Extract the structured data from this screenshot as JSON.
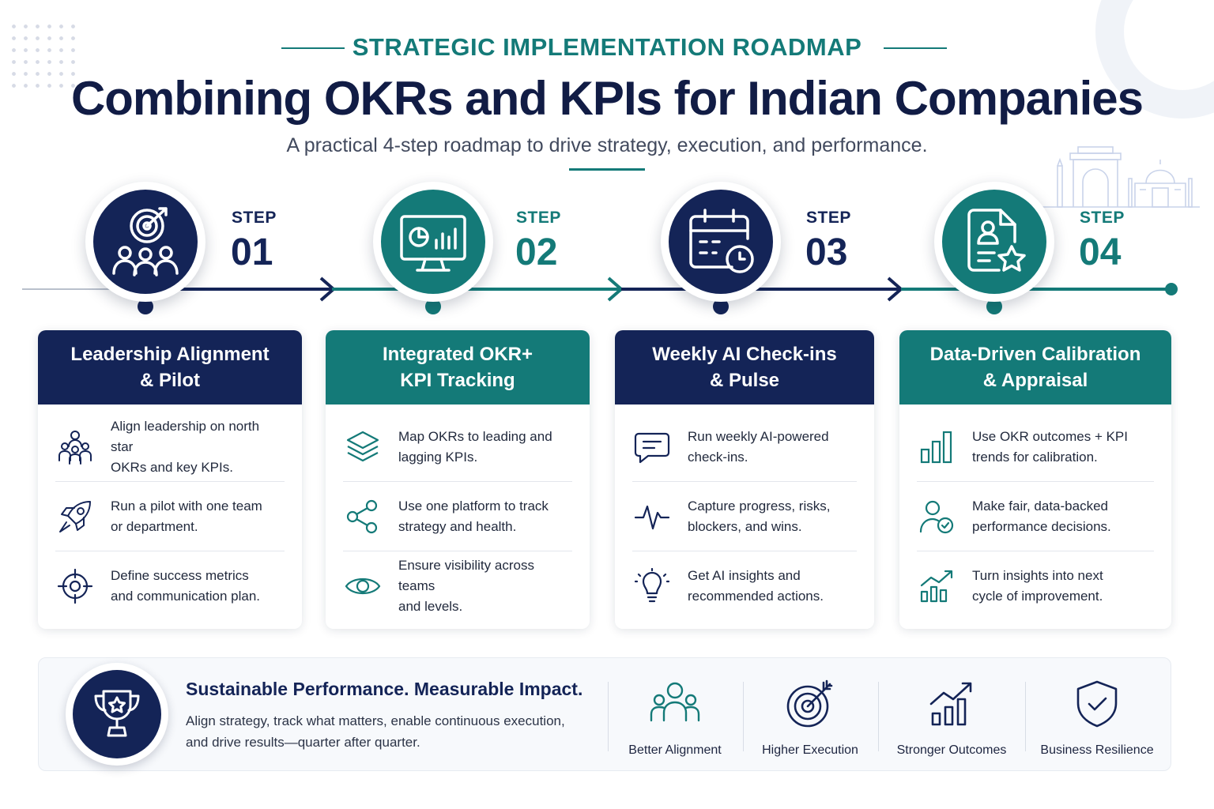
{
  "eyebrow": "STRATEGIC IMPLEMENTATION ROADMAP",
  "title": "Combining OKRs and KPIs for Indian Companies",
  "subtitle": "A practical 4-step roadmap to drive strategy, execution, and performance.",
  "colors": {
    "navy": "#142457",
    "teal": "#147a78"
  },
  "steps": [
    {
      "label": "STEP",
      "number": "01",
      "theme": "navy",
      "icon": "target-team-icon",
      "title_line1": "Leadership Alignment",
      "title_line2": "& Pilot",
      "items": [
        {
          "icon": "team-icon",
          "line1": "Align leadership on north star",
          "line2": "OKRs and key KPIs."
        },
        {
          "icon": "rocket-icon",
          "line1": "Run a pilot with one team",
          "line2": "or department."
        },
        {
          "icon": "crosshair-icon",
          "line1": "Define success metrics",
          "line2": "and communication plan."
        }
      ]
    },
    {
      "label": "STEP",
      "number": "02",
      "theme": "teal",
      "icon": "dashboard-monitor-icon",
      "title_line1": "Integrated OKR+",
      "title_line2": "KPI Tracking",
      "items": [
        {
          "icon": "layers-icon",
          "line1": "Map OKRs to leading and",
          "line2": "lagging KPIs."
        },
        {
          "icon": "share-nodes-icon",
          "line1": "Use one platform to track",
          "line2": "strategy and health."
        },
        {
          "icon": "eye-icon",
          "line1": "Ensure visibility across teams",
          "line2": "and levels."
        }
      ]
    },
    {
      "label": "STEP",
      "number": "03",
      "theme": "navy",
      "icon": "calendar-clock-icon",
      "title_line1": "Weekly AI Check-ins",
      "title_line2": "& Pulse",
      "items": [
        {
          "icon": "chat-bubble-icon",
          "line1": "Run weekly AI-powered",
          "line2": "check-ins."
        },
        {
          "icon": "pulse-icon",
          "line1": "Capture progress, risks,",
          "line2": "blockers, and wins."
        },
        {
          "icon": "lightbulb-icon",
          "line1": "Get AI insights and",
          "line2": "recommended actions."
        }
      ]
    },
    {
      "label": "STEP",
      "number": "04",
      "theme": "teal",
      "icon": "profile-star-icon",
      "title_line1": "Data-Driven Calibration",
      "title_line2": "& Appraisal",
      "items": [
        {
          "icon": "bar-chart-icon",
          "line1": "Use OKR outcomes + KPI",
          "line2": "trends for calibration."
        },
        {
          "icon": "user-check-icon",
          "line1": "Make fair, data-backed",
          "line2": "performance decisions."
        },
        {
          "icon": "growth-chart-icon",
          "line1": "Turn insights into next",
          "line2": "cycle of improvement."
        }
      ]
    }
  ],
  "footer": {
    "icon": "trophy-icon",
    "title": "Sustainable Performance. Measurable Impact.",
    "text_line1": "Align strategy, track what matters, enable continuous execution,",
    "text_line2": "and drive results—quarter after quarter.",
    "benefits": [
      {
        "icon": "group-icon",
        "label": "Better Alignment"
      },
      {
        "icon": "target-arrow-icon",
        "label": "Higher Execution"
      },
      {
        "icon": "growth-bars-icon",
        "label": "Stronger Outcomes"
      },
      {
        "icon": "shield-check-icon",
        "label": "Business Resilience"
      }
    ]
  }
}
